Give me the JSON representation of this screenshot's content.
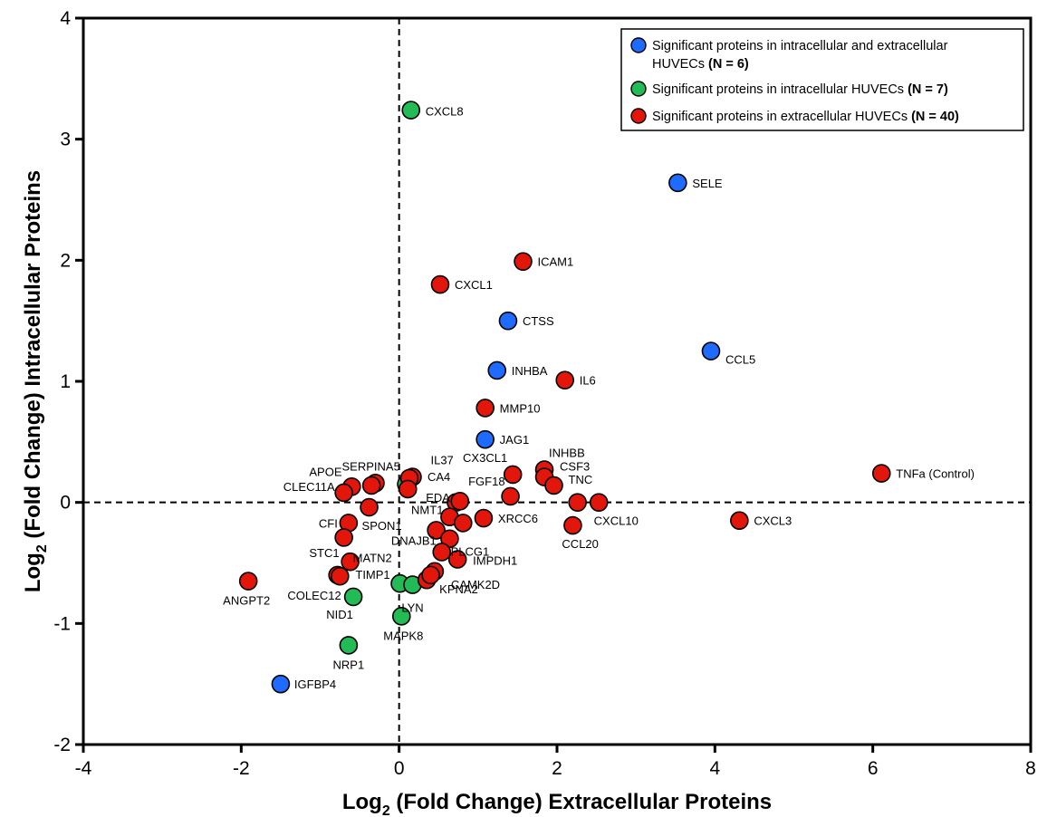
{
  "chart_data": {
    "type": "scatter",
    "xlabel_main": "Log",
    "xlabel_sub": "2",
    "xlabel_rest": " (Fold Change) Extracellular Proteins",
    "ylabel_main": "Log",
    "ylabel_sub": "2",
    "ylabel_rest": " (Fold Change) Intracellular Proteins",
    "xlim": [
      -4,
      8
    ],
    "ylim": [
      -2,
      4
    ],
    "xticks": [
      "-4",
      "-2",
      "0",
      "2",
      "4",
      "6",
      "8"
    ],
    "yticks": [
      "-2",
      "-1",
      "0",
      "1",
      "2",
      "3",
      "4"
    ],
    "reference_lines": {
      "x": 0,
      "y": 0,
      "style": "dashed"
    },
    "grid": false,
    "legend_position": "top-right",
    "legend": [
      {
        "color": "#1f6bff",
        "text": "Significant proteins in intracellular and extracellular",
        "text2": "HUVECs ",
        "bold": "(N = 6)"
      },
      {
        "color": "#22bb55",
        "text": "Significant proteins in intracellular HUVECs ",
        "bold": "(N = 7)"
      },
      {
        "color": "#e3160b",
        "text": "Significant proteins in extracellular HUVECs ",
        "bold": "(N = 40)"
      }
    ],
    "colors": {
      "blue": "#1f6bff",
      "green": "#22bb55",
      "red": "#e3160b"
    },
    "series": [
      {
        "group": "blue",
        "points": [
          {
            "label": "SELE",
            "x": 3.53,
            "y": 2.64
          },
          {
            "label": "CTSS",
            "x": 1.38,
            "y": 1.5
          },
          {
            "label": "CCL5",
            "x": 3.95,
            "y": 1.25
          },
          {
            "label": "INHBA",
            "x": 1.24,
            "y": 1.09
          },
          {
            "label": "JAG1",
            "x": 1.09,
            "y": 0.52
          },
          {
            "label": "IGFBP4",
            "x": -1.5,
            "y": -1.5
          }
        ]
      },
      {
        "group": "green",
        "points": [
          {
            "label": "CXCL8",
            "x": 0.15,
            "y": 3.24
          },
          {
            "label": "",
            "x": 0.09,
            "y": 0.15
          },
          {
            "label": "TIMP1",
            "x": 0.01,
            "y": -0.67
          },
          {
            "label": "LYN",
            "x": 0.17,
            "y": -0.68
          },
          {
            "label": "NID1",
            "x": -0.58,
            "y": -0.78
          },
          {
            "label": "MAPK8",
            "x": 0.03,
            "y": -0.94
          },
          {
            "label": "NRP1",
            "x": -0.64,
            "y": -1.18
          }
        ]
      },
      {
        "group": "red",
        "points": [
          {
            "label": "ICAM1",
            "x": 1.57,
            "y": 1.99
          },
          {
            "label": "CXCL1",
            "x": 0.52,
            "y": 1.8
          },
          {
            "label": "IL6",
            "x": 2.1,
            "y": 1.01
          },
          {
            "label": "MMP10",
            "x": 1.09,
            "y": 0.78
          },
          {
            "label": "INHBB",
            "x": 1.84,
            "y": 0.27
          },
          {
            "label": "CSF3",
            "x": 1.84,
            "y": 0.21
          },
          {
            "label": "TNFa (Control)",
            "x": 6.11,
            "y": 0.24
          },
          {
            "label": "CX3CL1",
            "x": 1.44,
            "y": 0.23
          },
          {
            "label": "TNC",
            "x": 1.96,
            "y": 0.14
          },
          {
            "label": "FGF18",
            "x": 1.41,
            "y": 0.05
          },
          {
            "label": "CXCL10",
            "x": 2.26,
            "y": 0.0
          },
          {
            "label": "",
            "x": 2.53,
            "y": 0.0
          },
          {
            "label": "CXCL3",
            "x": 4.31,
            "y": -0.15
          },
          {
            "label": "CCL20",
            "x": 2.2,
            "y": -0.19
          },
          {
            "label": "XRCC6",
            "x": 1.07,
            "y": -0.13
          },
          {
            "label": "IL37",
            "x": 0.17,
            "y": 0.21
          },
          {
            "label": "CA4",
            "x": 0.13,
            "y": 0.2
          },
          {
            "label": "EDA",
            "x": 0.11,
            "y": 0.11
          },
          {
            "label": "SERPINA5",
            "x": -0.3,
            "y": 0.16
          },
          {
            "label": "APOE",
            "x": -0.6,
            "y": 0.13
          },
          {
            "label": "",
            "x": -0.35,
            "y": 0.14
          },
          {
            "label": "CLEC11A",
            "x": -0.7,
            "y": 0.08
          },
          {
            "label": "SPON1",
            "x": -0.38,
            "y": -0.04
          },
          {
            "label": "CFI",
            "x": -0.64,
            "y": -0.17
          },
          {
            "label": "MATN2",
            "x": -0.7,
            "y": -0.29
          },
          {
            "label": "STC1",
            "x": -0.62,
            "y": -0.49
          },
          {
            "label": "COLEC12",
            "x": -0.78,
            "y": -0.6
          },
          {
            "label": "",
            "x": -0.75,
            "y": -0.61
          },
          {
            "label": "ANGPT2",
            "x": -1.91,
            "y": -0.65
          },
          {
            "label": "NMT1",
            "x": 0.72,
            "y": 0.0
          },
          {
            "label": "",
            "x": 0.77,
            "y": 0.01
          },
          {
            "label": "",
            "x": 0.64,
            "y": -0.12
          },
          {
            "label": "",
            "x": 0.81,
            "y": -0.17
          },
          {
            "label": "PLCG1",
            "x": 0.47,
            "y": -0.23
          },
          {
            "label": "",
            "x": 0.64,
            "y": -0.3
          },
          {
            "label": "DNAJB1",
            "x": 0.54,
            "y": -0.41
          },
          {
            "label": "IMPDH1",
            "x": 0.74,
            "y": -0.47
          },
          {
            "label": "CAMK2D",
            "x": 0.45,
            "y": -0.57
          },
          {
            "label": "KPNA2",
            "x": 0.35,
            "y": -0.64
          },
          {
            "label": "",
            "x": 0.4,
            "y": -0.6
          }
        ]
      }
    ]
  }
}
